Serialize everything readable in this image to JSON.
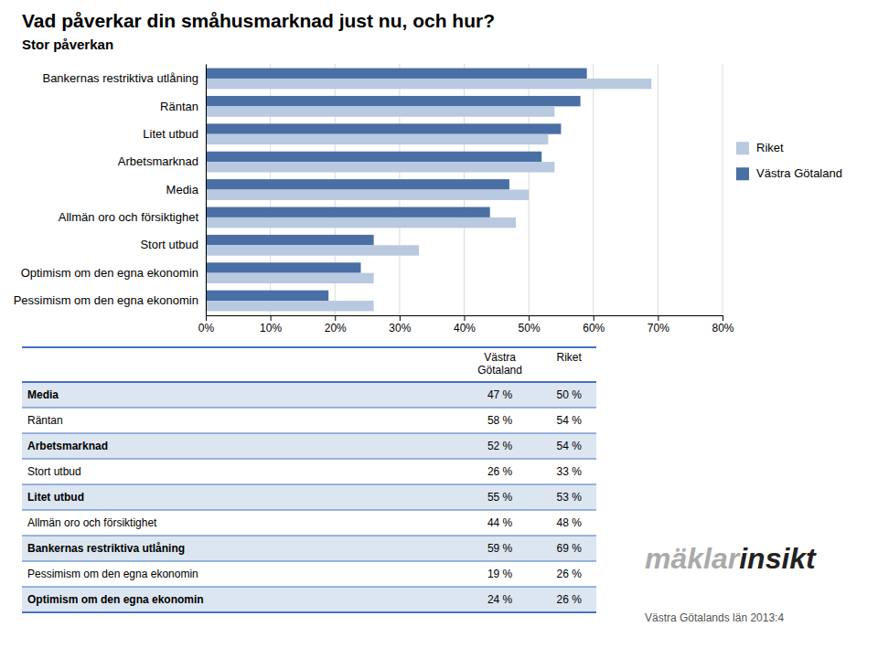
{
  "chart_data": {
    "type": "bar",
    "orientation": "horizontal",
    "title": "Vad påverkar din småhusmarknad just nu, och hur?",
    "subtitle": "Stor påverkan",
    "categories": [
      "Bankernas restriktiva utlåning",
      "Räntan",
      "Litet utbud",
      "Arbetsmarknad",
      "Media",
      "Allmän oro och försiktighet",
      "Stort utbud",
      "Optimism om den egna ekonomin",
      "Pessimism om den egna ekonomin"
    ],
    "series": [
      {
        "name": "Västra Götaland",
        "color": "#4a6fa5",
        "values": [
          0.59,
          0.58,
          0.55,
          0.52,
          0.47,
          0.44,
          0.26,
          0.24,
          0.19
        ]
      },
      {
        "name": "Riket",
        "color": "#b8c9e0",
        "values": [
          0.69,
          0.54,
          0.53,
          0.54,
          0.5,
          0.48,
          0.33,
          0.26,
          0.26
        ]
      }
    ],
    "xlim": [
      0,
      0.8
    ],
    "xticks": [
      {
        "value": 0,
        "label": "0%"
      },
      {
        "value": 0.1,
        "label": "10%"
      },
      {
        "value": 0.2,
        "label": "20%"
      },
      {
        "value": 0.3,
        "label": "30%"
      },
      {
        "value": 0.4,
        "label": "40%"
      },
      {
        "value": 0.5,
        "label": "50%"
      },
      {
        "value": 0.6,
        "label": "60%"
      },
      {
        "value": 0.7,
        "label": "70%"
      },
      {
        "value": 0.8,
        "label": "80%"
      }
    ],
    "grid": true,
    "legend": "right"
  },
  "table": {
    "columns": [
      "Västra\nGötaland",
      "Riket"
    ],
    "rows": [
      [
        "Media",
        "47 %",
        "50 %"
      ],
      [
        "Räntan",
        "58 %",
        "54 %"
      ],
      [
        "Arbetsmarknad",
        "52 %",
        "54 %"
      ],
      [
        "Stort utbud",
        "26 %",
        "33 %"
      ],
      [
        "Litet utbud",
        "55 %",
        "53 %"
      ],
      [
        "Allmän oro och försiktighet",
        "44 %",
        "48 %"
      ],
      [
        "Bankernas restriktiva utlåning",
        "59 %",
        "69 %"
      ],
      [
        "Pessimism om den egna ekonomin",
        "19 %",
        "26 %"
      ],
      [
        "Optimism om den egna ekonomin",
        "24 %",
        "26 %"
      ]
    ],
    "color": "#4472c4",
    "colors": [
      "#dce6f1",
      "#ffffff"
    ]
  },
  "annotations": [
    "mäklar",
    "insikt",
    "Västra Götalands län 2013:4"
  ]
}
